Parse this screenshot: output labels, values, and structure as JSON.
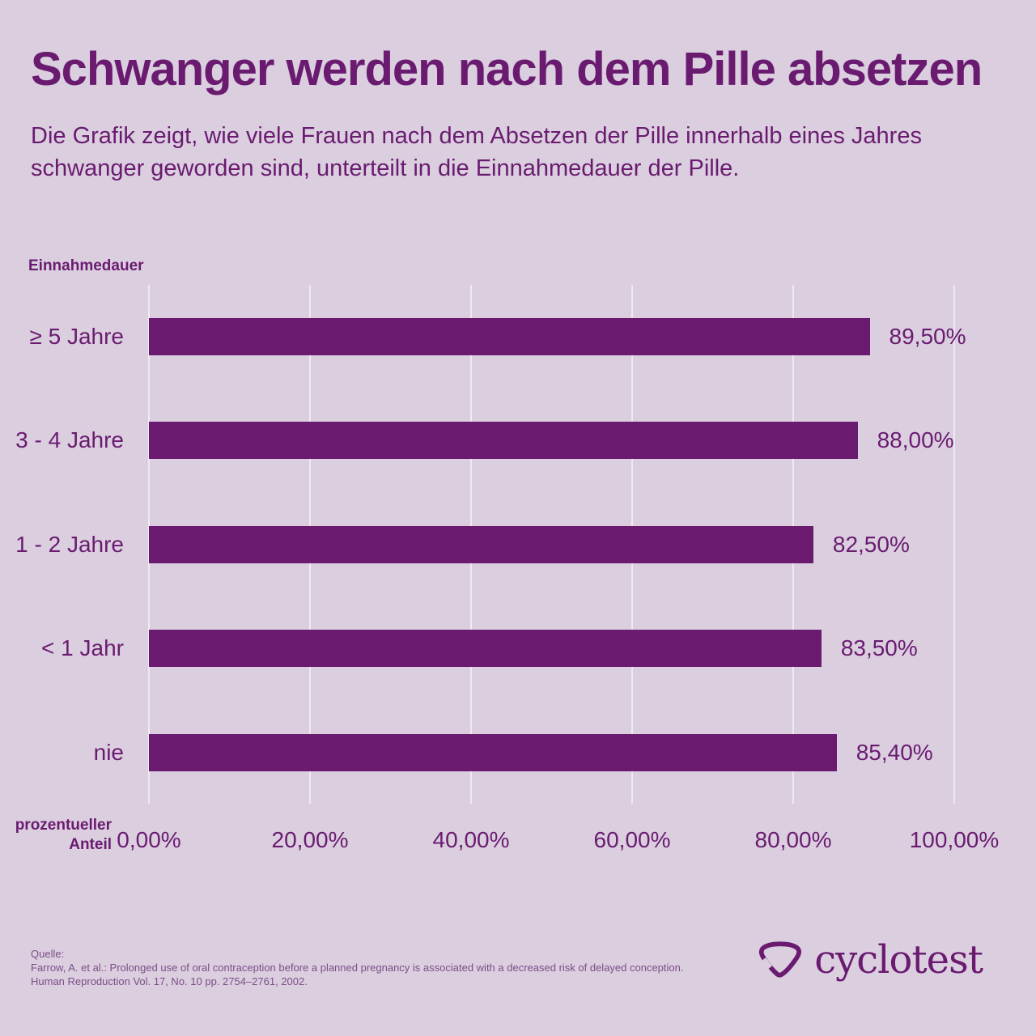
{
  "page": {
    "background": "#DACEDF",
    "accent": "#6A1B70",
    "grid_line": "#EFE9F3",
    "muted_text": "#7C4E86"
  },
  "header": {
    "title": "Schwanger werden nach dem Pille absetzen",
    "subtitle": "Die Grafik zeigt, wie viele Frauen nach dem Absetzen der Pille innerhalb eines Jahres schwanger geworden sind, unterteilt in die Einnahmedauer der Pille.",
    "subtitle_lines": [
      "Die Grafik zeigt, wie viele Frauen nach dem Absetzen der Pille innerhalb eines Jahres",
      "schwanger geworden sind, unterteilt in die Einnahmedauer der Pille."
    ]
  },
  "chart_data": {
    "type": "bar",
    "orientation": "horizontal",
    "title": "Schwanger werden nach dem Pille absetzen",
    "y_axis_label": "Einnahmedauer",
    "x_axis_label": "prozentueller Anteil",
    "categories": [
      "≥ 5 Jahre",
      "3 - 4 Jahre",
      "1 - 2 Jahre",
      "< 1 Jahr",
      "nie"
    ],
    "values": [
      89.5,
      88.0,
      82.5,
      83.5,
      85.4
    ],
    "value_labels": [
      "89,50%",
      "88,00%",
      "82,50%",
      "83,50%",
      "85,40%"
    ],
    "x_ticks": [
      "0,00%",
      "20,00%",
      "40,00%",
      "60,00%",
      "80,00%",
      "100,00%"
    ],
    "x_tick_values": [
      0,
      20,
      40,
      60,
      80,
      100
    ],
    "xlim": [
      0,
      100
    ],
    "bar_color": "#6A1B70",
    "grid": true,
    "legend": false
  },
  "footer": {
    "source_label": "Quelle:",
    "source_line1": "Farrow, A. et al.: Prolonged use of oral contraception before a planned pregnancy is associated with a decreased risk of delayed conception.",
    "source_line2": "Human Reproduction Vol. 17, No. 10 pp. 2754–2761, 2002.",
    "brand": "cyclotest"
  }
}
